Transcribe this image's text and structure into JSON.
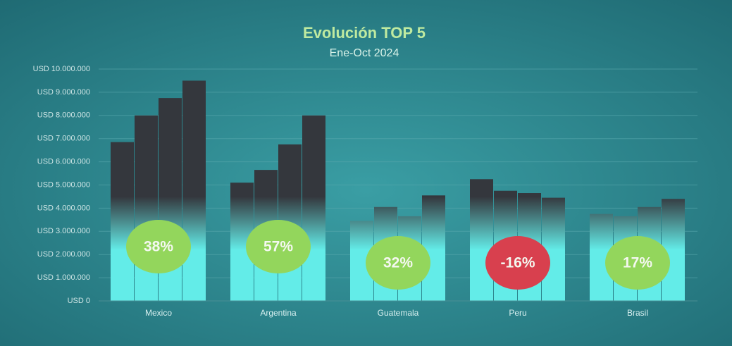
{
  "chart_data": {
    "type": "bar",
    "title": "Evolución TOP 5",
    "subtitle": "Ene-Oct 2024",
    "categories": [
      "Mexico",
      "Argentina",
      "Guatemala",
      "Peru",
      "Brasil"
    ],
    "series": [
      {
        "values": [
          6850000,
          5100000,
          3450000,
          5250000,
          3750000
        ]
      },
      {
        "values": [
          8000000,
          5650000,
          4050000,
          4750000,
          3650000
        ]
      },
      {
        "values": [
          8750000,
          6750000,
          3650000,
          4650000,
          4050000
        ]
      },
      {
        "values": [
          9500000,
          8000000,
          4550000,
          4450000,
          4400000
        ]
      }
    ],
    "bar_colors": [
      "#34373d",
      "#63ece8"
    ],
    "ylim": [
      0,
      10000000
    ],
    "yticks": [
      {
        "value": 0,
        "label": "USD 0"
      },
      {
        "value": 1000000,
        "label": "USD 1.000.000"
      },
      {
        "value": 2000000,
        "label": "USD 2.000.000"
      },
      {
        "value": 3000000,
        "label": "USD 3.000.000"
      },
      {
        "value": 4000000,
        "label": "USD 4.000.000"
      },
      {
        "value": 5000000,
        "label": "USD 5.000.000"
      },
      {
        "value": 6000000,
        "label": "USD 6.000.000"
      },
      {
        "value": 7000000,
        "label": "USD 7.000.000"
      },
      {
        "value": 8000000,
        "label": "USD 8.000.000"
      },
      {
        "value": 9000000,
        "label": "USD 9.000.000"
      },
      {
        "value": 10000000,
        "label": "USD 10.000.000"
      }
    ],
    "grid": true,
    "badges": {
      "values": [
        38,
        57,
        32,
        -16,
        17
      ],
      "value_labels": [
        "38%",
        "57%",
        "32%",
        "-16%",
        "17%"
      ]
    },
    "badge_colors": {
      "positive": "#93d65c",
      "negative": "#d8404e"
    }
  }
}
